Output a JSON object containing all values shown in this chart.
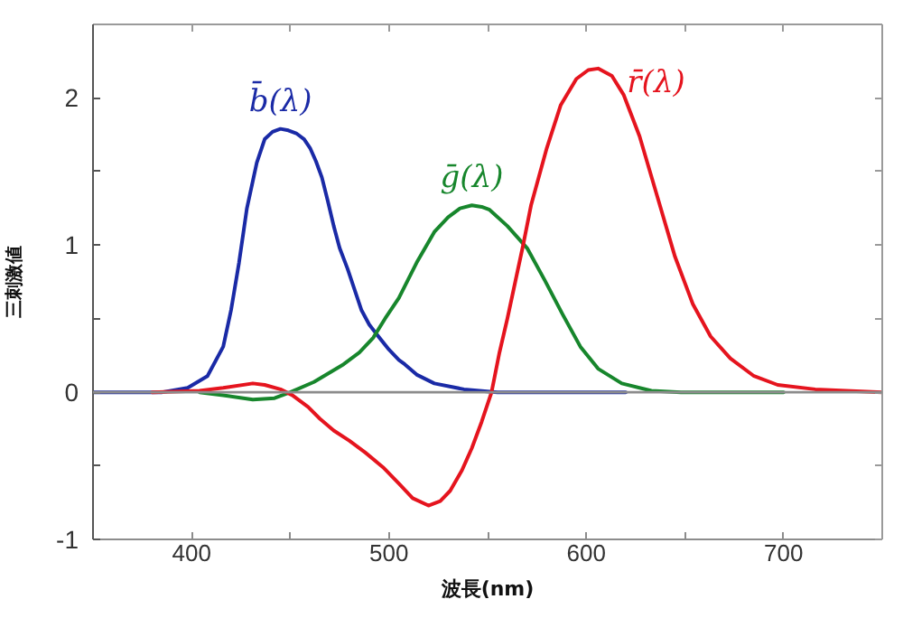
{
  "chart_data": {
    "type": "line",
    "xlabel": "波長(nm)",
    "ylabel": "三刺激値",
    "xlim": [
      350,
      750
    ],
    "ylim": [
      -1,
      2.5
    ],
    "xticks": [
      400,
      {
        "value": 450,
        "label": null
      },
      500,
      {
        "value": 550,
        "label": null
      },
      600,
      {
        "value": 650,
        "label": null
      },
      700
    ],
    "yticks": [
      -1,
      {
        "value": -0.5,
        "label": null
      },
      0,
      {
        "value": 0.5,
        "label": null
      },
      1,
      {
        "value": 1.5,
        "label": null
      },
      2
    ],
    "grid": false,
    "ref_lines": [
      {
        "axis": "y",
        "value": 0,
        "color": "#8c8c8c"
      }
    ],
    "series": [
      {
        "name": "b̄(λ)",
        "color": "#1a2aa6",
        "x": [
          350,
          385,
          398,
          408,
          416,
          420,
          424,
          428,
          433,
          437,
          441,
          445,
          449,
          453,
          457,
          460,
          463,
          466,
          469,
          472,
          475,
          479,
          483,
          486,
          490,
          494,
          500,
          505,
          508,
          514,
          523,
          538,
          555,
          620
        ],
        "values": [
          0,
          0,
          0.03,
          0.11,
          0.31,
          0.56,
          0.88,
          1.25,
          1.56,
          1.72,
          1.77,
          1.79,
          1.78,
          1.76,
          1.72,
          1.66,
          1.57,
          1.46,
          1.3,
          1.13,
          0.98,
          0.84,
          0.68,
          0.56,
          0.46,
          0.39,
          0.29,
          0.22,
          0.19,
          0.12,
          0.06,
          0.02,
          0,
          0
        ]
      },
      {
        "name": "ḡ(λ)",
        "color": "#17862c",
        "x": [
          404,
          416,
          431,
          442,
          450,
          462,
          477,
          485,
          492,
          498,
          505,
          514,
          523,
          530,
          536,
          542,
          547,
          551,
          560,
          570,
          579,
          588,
          597,
          606,
          618,
          633,
          648,
          700
        ],
        "values": [
          0,
          -0.02,
          -0.05,
          -0.04,
          0,
          0.07,
          0.19,
          0.27,
          0.37,
          0.5,
          0.64,
          0.88,
          1.09,
          1.19,
          1.25,
          1.27,
          1.26,
          1.24,
          1.13,
          0.98,
          0.76,
          0.53,
          0.31,
          0.16,
          0.06,
          0.01,
          0,
          0
        ]
      },
      {
        "name": "r̄(λ)",
        "color": "#e5141e",
        "x": [
          380,
          404,
          416,
          431,
          437,
          445,
          451,
          459,
          465,
          472,
          480,
          488,
          497,
          505,
          512,
          520,
          526,
          531,
          537,
          542,
          547,
          552,
          556,
          560,
          564,
          568,
          572,
          580,
          587,
          595,
          601,
          606,
          613,
          619,
          627,
          636,
          645,
          654,
          663,
          673,
          685,
          697,
          716,
          750
        ],
        "values": [
          0,
          0.01,
          0.03,
          0.06,
          0.05,
          0.02,
          -0.02,
          -0.1,
          -0.18,
          -0.26,
          -0.33,
          -0.41,
          -0.51,
          -0.62,
          -0.72,
          -0.77,
          -0.74,
          -0.67,
          -0.53,
          -0.38,
          -0.2,
          0,
          0.27,
          0.5,
          0.75,
          1.0,
          1.27,
          1.66,
          1.95,
          2.13,
          2.19,
          2.2,
          2.15,
          2.02,
          1.74,
          1.33,
          0.92,
          0.6,
          0.38,
          0.23,
          0.11,
          0.05,
          0.02,
          0
        ]
      }
    ]
  }
}
